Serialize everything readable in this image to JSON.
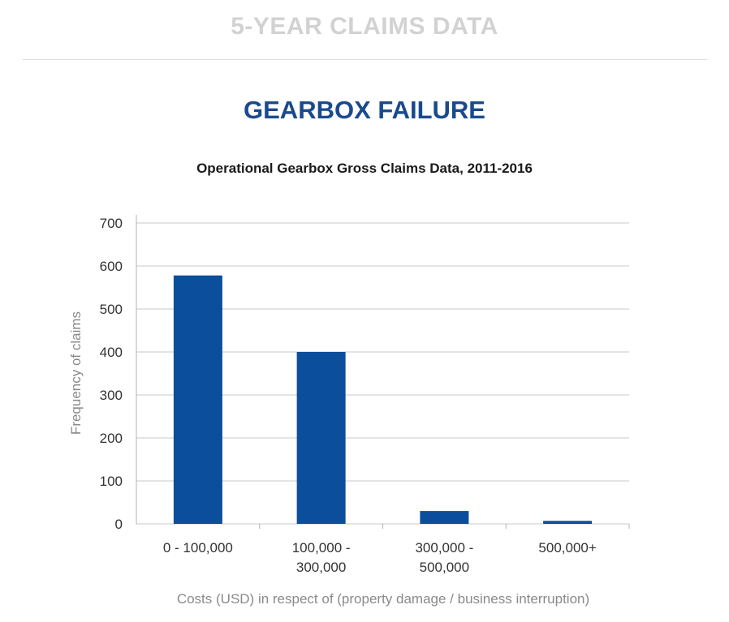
{
  "header": {
    "section_title": "5-YEAR CLAIMS DATA",
    "chart_heading": "GEARBOX FAILURE"
  },
  "chart_data": {
    "type": "bar",
    "title": "Operational Gearbox Gross Claims Data, 2011-2016",
    "categories": [
      [
        "0 - 100,000"
      ],
      [
        "100,000 -",
        "300,000"
      ],
      [
        "300,000 -",
        "500,000"
      ],
      [
        "500,000+"
      ]
    ],
    "values": [
      578,
      400,
      30,
      7
    ],
    "xlabel": "Costs (USD) in respect of (property damage / business interruption)",
    "ylabel": "Frequency of claims",
    "ylim": [
      0,
      700
    ],
    "yticks": [
      0,
      100,
      200,
      300,
      400,
      500,
      600,
      700
    ],
    "grid": true,
    "bar_color": "#0b4f9c",
    "grid_color": "#c8c8c8",
    "tick_label_color": "#333333",
    "axis_label_color": "#8a8a8a"
  }
}
